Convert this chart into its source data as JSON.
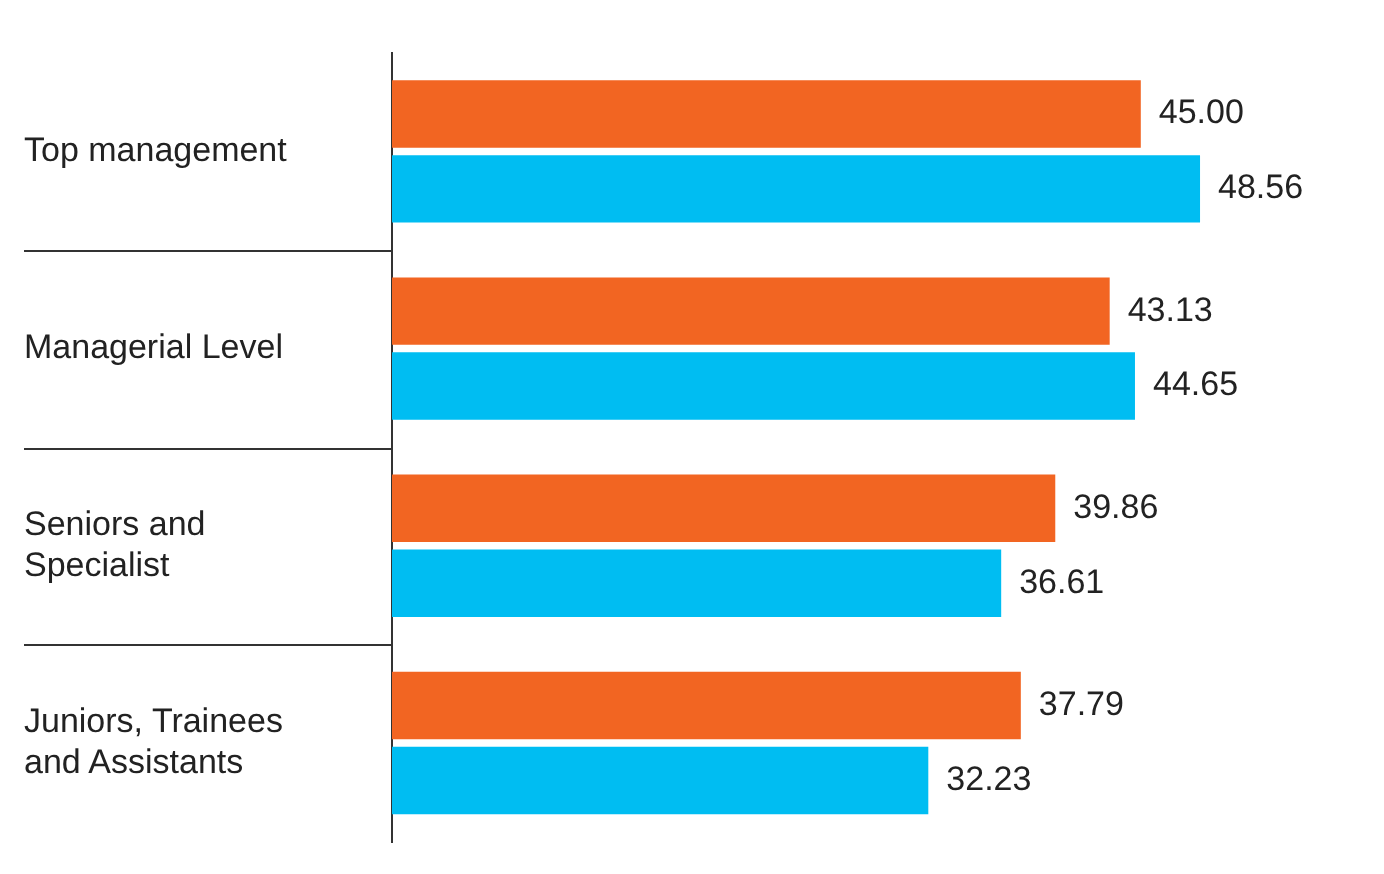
{
  "chart_data": {
    "type": "bar",
    "orientation": "horizontal",
    "categories": [
      "Top management",
      "Managerial Level",
      "Seniors and Specialist",
      "Juniors, Trainees and Assistants"
    ],
    "series": [
      {
        "color": "#f26522",
        "values": [
          45.0,
          43.13,
          39.86,
          37.79
        ],
        "value_labels": [
          "45.00",
          "43.13",
          "39.86",
          "37.79"
        ]
      },
      {
        "color": "#00bdf2",
        "values": [
          48.56,
          44.65,
          36.61,
          32.23
        ],
        "value_labels": [
          "48.56",
          "44.65",
          "36.61",
          "32.23"
        ]
      }
    ],
    "legend": false
  }
}
